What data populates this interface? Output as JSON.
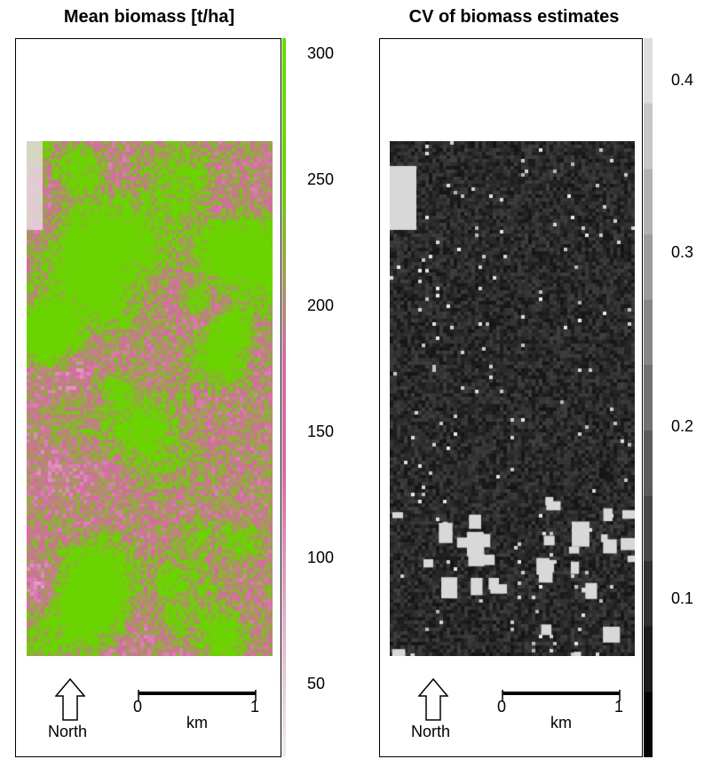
{
  "left_panel": {
    "title": "Mean biomass [t/ha]",
    "legend_ticks": [
      "300",
      "250",
      "200",
      "150",
      "100",
      "50"
    ],
    "colors": {
      "low": "#e8d8e0",
      "mid": "#d66aa6",
      "high": "#6ad400",
      "bar_top": "#66dd00",
      "bar_bottom": "#eeeeee"
    },
    "north_label": "North",
    "scale": {
      "zero": "0",
      "one": "1",
      "unit": "km"
    }
  },
  "right_panel": {
    "title": "CV of biomass estimates",
    "legend_ticks": [
      "0.4",
      "0.3",
      "0.2",
      "0.1"
    ],
    "colors": {
      "low": "#111111",
      "high": "#d8d8d8"
    },
    "north_label": "North",
    "scale": {
      "zero": "0",
      "one": "1",
      "unit": "km"
    }
  }
}
